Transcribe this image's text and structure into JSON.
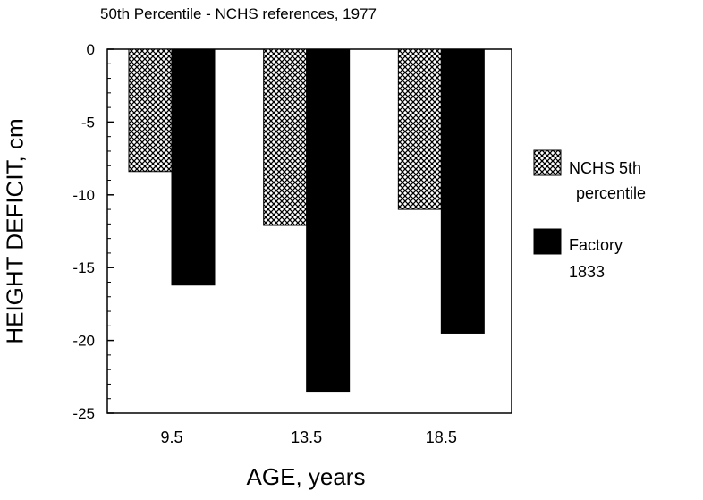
{
  "chart_data": {
    "type": "bar",
    "title": "50th Percentile - NCHS references, 1977",
    "xlabel": "AGE, years",
    "ylabel": "HEIGHT DEFICIT, cm",
    "categories": [
      "9.5",
      "13.5",
      "18.5"
    ],
    "ylim": [
      -25,
      0
    ],
    "yticks": [
      "0",
      "-5",
      "-10",
      "-15",
      "-20",
      "-25"
    ],
    "grid": false,
    "legend_position": "right",
    "series": [
      {
        "name": "NCHS 5th percentile",
        "legend_lines": [
          "NCHS 5th",
          "percentile"
        ],
        "values": [
          -8.4,
          -12.1,
          -11.0
        ],
        "fill": "crosshatch"
      },
      {
        "name": "Factory 1833",
        "legend_lines": [
          "Factory",
          "1833"
        ],
        "values": [
          -16.2,
          -23.5,
          -19.5
        ],
        "fill": "#000000"
      }
    ]
  }
}
